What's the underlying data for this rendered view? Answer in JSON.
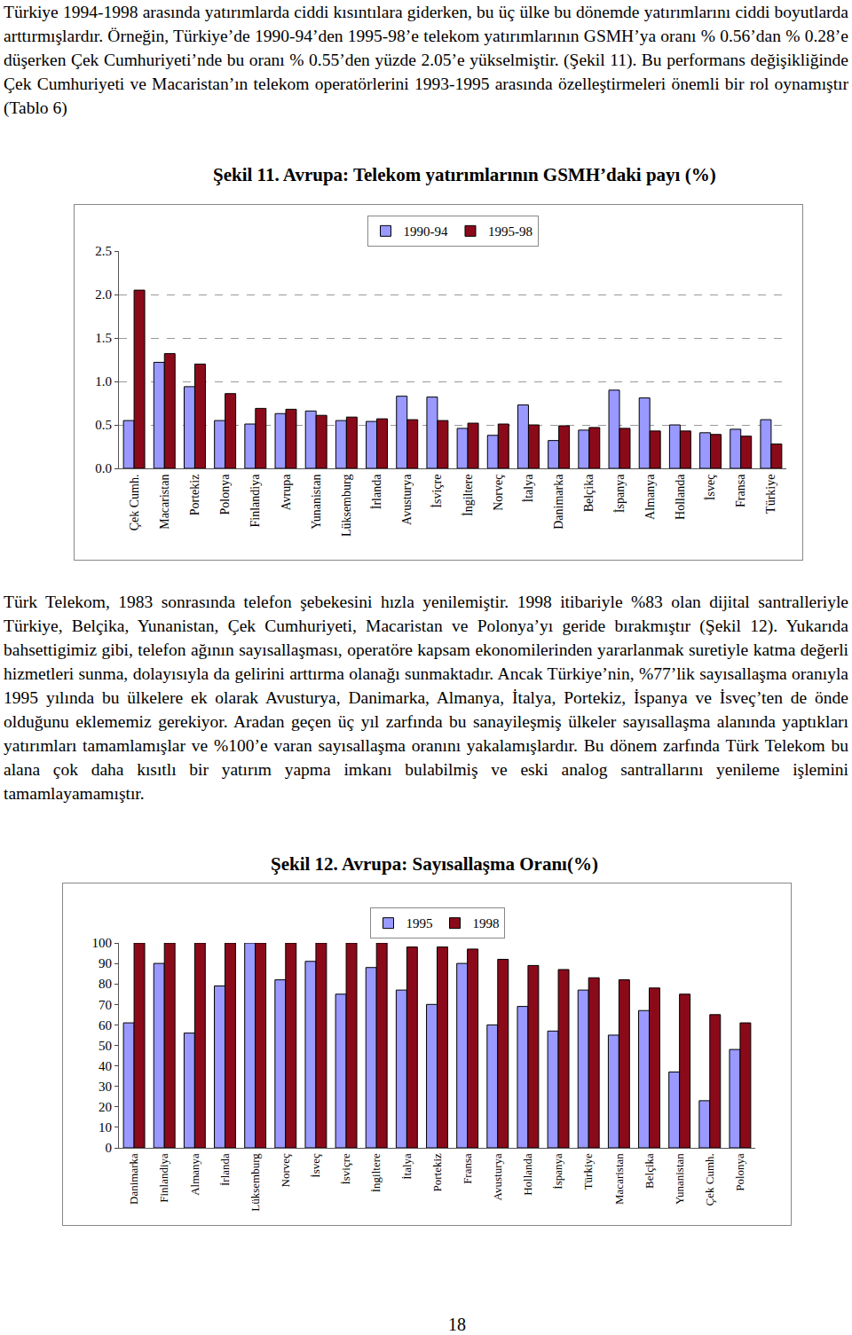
{
  "paragraphs": [
    "Türkiye 1994-1998 arasında yatırımlarda ciddi kısıntılara giderken, bu üç ülke bu dönemde yatırımlarını ciddi boyutlarda arttırmışlardır. Örneğin, Türkiye’de 1990-94’den 1995-98’e telekom yatırımlarının GSMH’ya oranı % 0.56’dan % 0.28’e düşerken Çek Cumhuriyeti’nde bu oranı % 0.55’den yüzde 2.05’e yükselmiştir. (Şekil 11). Bu performans değişikliğinde Çek Cumhuriyeti ve Macaristan’ın telekom operatörlerini 1993-1995 arasında özelleştirmeleri önemli bir rol oynamıştır (Tablo 6)",
    "Türk Telekom, 1983 sonrasında telefon şebekesini hızla yenilemiştir. 1998 itibariyle %83 olan dijital santralleriyle Türkiye, Belçika, Yunanistan, Çek Cumhuriyeti, Macaristan ve Polonya’yı geride bırakmıştır (Şekil 12). Yukarıda bahsettigimiz gibi, telefon ağının sayısallaşması, operatöre kapsam ekonomilerinden yararlanmak suretiyle katma değerli hizmetleri sunma, dolayısıyla da gelirini arttırma olanağı sunmaktadır. Ancak Türkiye’nin, %77’lik sayısallaşma oranıyla 1995 yılında bu ülkelere ek olarak Avusturya, Danimarka, Almanya, İtalya, Portekiz, İspanya ve İsveç’ten de önde olduğunu eklememiz gerekiyor. Aradan geçen üç yıl zarfında bu sanayileşmiş ülkeler sayısallaşma alanında yaptıkları yatırımları tamamlamışlar ve %100’e varan sayısallaşma oranını yakalamışlardır. Bu dönem zarfında Türk Telekom bu alana çok daha kısıtlı bir yatırım yapma imkanı bulabilmiş ve eski analog santrallarını yenileme işlemini tamamlayamamıştır."
  ],
  "page_number": "18",
  "chart_data": [
    {
      "type": "bar",
      "title": "Şekil 11. Avrupa: Telekom yatırımlarının GSMH’daki payı (%)",
      "categories": [
        "Çek Cumh.",
        "Macaristan",
        "Portekiz",
        "Polonya",
        "Finlandiya",
        "Avrupa",
        "Yunanistan",
        "Lüksemburg",
        "İrlanda",
        "Avusturya",
        "İsviçre",
        "İngiltere",
        "Norveç",
        "İtalya",
        "Danimarka",
        "Belçika",
        "İspanya",
        "Almanya",
        "Hollanda",
        "İsveç",
        "Fransa",
        "Türkiye"
      ],
      "series": [
        {
          "name": "1990-94",
          "color": "#9999ff",
          "values": [
            0.55,
            1.22,
            0.94,
            0.55,
            0.51,
            0.63,
            0.66,
            0.55,
            0.54,
            0.83,
            0.82,
            0.46,
            0.38,
            0.73,
            0.32,
            0.44,
            0.9,
            0.81,
            0.5,
            0.41,
            0.45,
            0.56
          ]
        },
        {
          "name": "1995-98",
          "color": "#8b0a1a",
          "values": [
            2.05,
            1.32,
            1.2,
            0.86,
            0.69,
            0.68,
            0.61,
            0.59,
            0.57,
            0.56,
            0.55,
            0.52,
            0.51,
            0.5,
            0.49,
            0.47,
            0.46,
            0.43,
            0.43,
            0.39,
            0.37,
            0.28
          ]
        }
      ],
      "ylim": [
        0,
        2.5
      ],
      "yticks": [
        {
          "value": 0,
          "label": "0.0"
        },
        {
          "value": 0.5,
          "label": "0.5"
        },
        {
          "value": 1,
          "label": "1.0"
        },
        {
          "value": 1.5,
          "label": "1.5"
        },
        {
          "value": 2,
          "label": "2.0"
        },
        {
          "value": 2.5,
          "label": "2.5"
        }
      ],
      "grid": true,
      "legend": "top"
    },
    {
      "type": "bar",
      "title": "Şekil 12.  Avrupa: Sayısallaşma Oranı(%)",
      "categories": [
        "Danimarka",
        "Finlandiya",
        "Almanya",
        "İrlanda",
        "Lüksemburg",
        "Norveç",
        "İsveç",
        "İsviçre",
        "İngiltere",
        "İtalya",
        "Portekiz",
        "Fransa",
        "Avusturya",
        "Hollanda",
        "İspanya",
        "Türkiye",
        "Macaristan",
        "Belçika",
        "Yunanistan",
        "Çek Cumh.",
        "Polonya"
      ],
      "series": [
        {
          "name": "1995",
          "color": "#9999ff",
          "values": [
            61,
            90,
            56,
            79,
            100,
            82,
            91,
            75,
            88,
            77,
            70,
            90,
            60,
            69,
            57,
            77,
            55,
            67,
            37,
            23,
            48
          ]
        },
        {
          "name": "1998",
          "color": "#8b0a1a",
          "values": [
            100,
            100,
            100,
            100,
            100,
            100,
            100,
            100,
            100,
            98,
            98,
            97,
            92,
            89,
            87,
            83,
            82,
            78,
            75,
            65,
            61
          ]
        }
      ],
      "ylim": [
        0,
        100
      ],
      "yticks": [
        0,
        10,
        20,
        30,
        40,
        50,
        60,
        70,
        80,
        90,
        100
      ],
      "grid": false,
      "legend": "top"
    }
  ]
}
